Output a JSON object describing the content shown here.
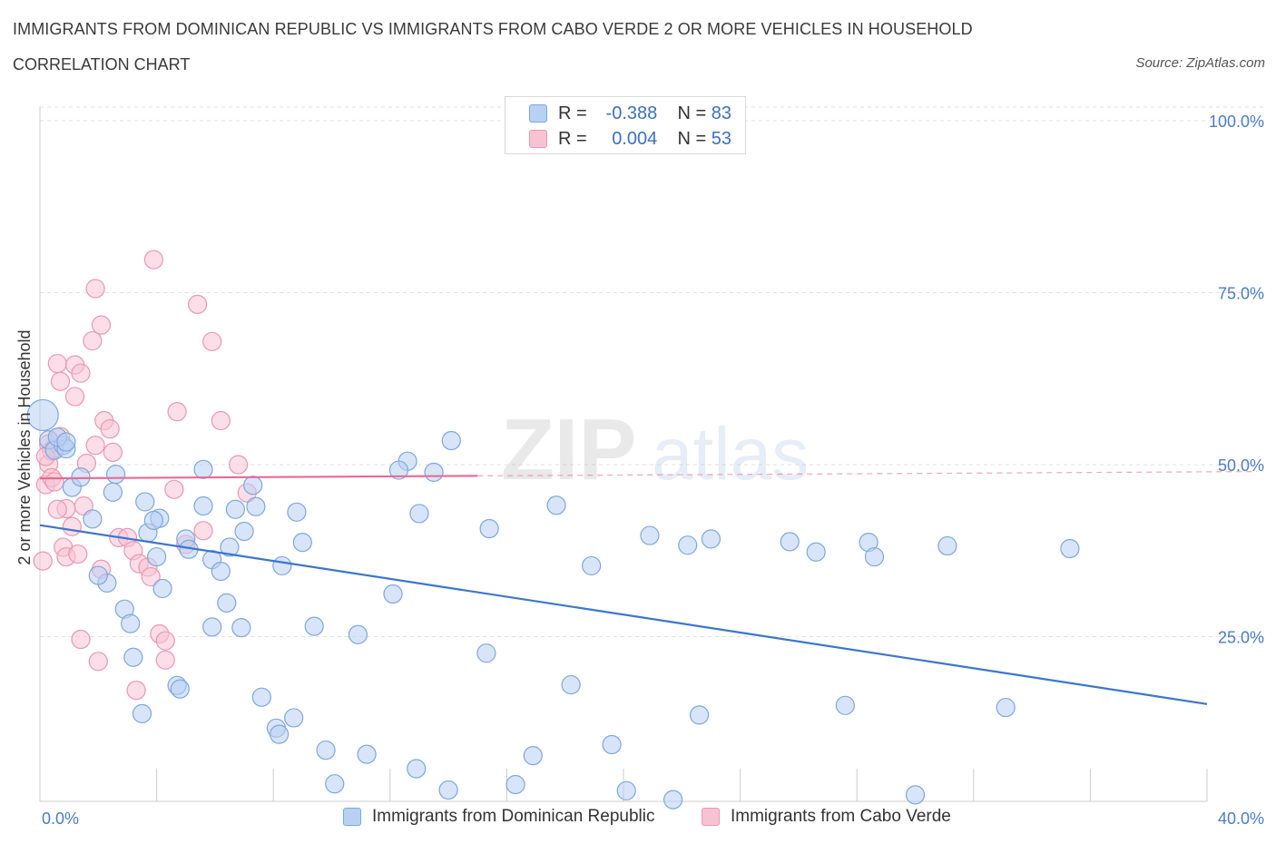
{
  "title": "IMMIGRANTS FROM DOMINICAN REPUBLIC VS IMMIGRANTS FROM CABO VERDE 2 OR MORE VEHICLES IN HOUSEHOLD",
  "subtitle": "CORRELATION CHART",
  "source": "Source: ZipAtlas.com",
  "watermark": {
    "zip": "ZIP",
    "atlas": "atlas"
  },
  "legend": {
    "rows": [
      {
        "r_label": "R =",
        "r_value": "-0.388",
        "n_label": "N =",
        "n_value": "83"
      },
      {
        "r_label": "R =",
        "r_value": "0.004",
        "n_label": "N =",
        "n_value": "53"
      }
    ]
  },
  "colors": {
    "blue_fill": "#b8d0f2",
    "blue_stroke": "#7ea6e0",
    "blue_line": "#3a75d1",
    "pink_fill": "#f7c3d3",
    "pink_stroke": "#eb97b2",
    "pink_line": "#e86a94",
    "grid": "#e2e2e2",
    "axis_text": "#4a7cc9"
  },
  "chart_data": {
    "type": "scatter",
    "title": "IMMIGRANTS FROM DOMINICAN REPUBLIC VS IMMIGRANTS FROM CABO VERDE 2 OR MORE VEHICLES IN HOUSEHOLD",
    "subtitle": "CORRELATION CHART",
    "xlabel": "",
    "ylabel": "2 or more Vehicles in Household",
    "xlim": [
      0,
      40
    ],
    "ylim": [
      0,
      100
    ],
    "x_tick_labels": [
      "0.0%",
      "40.0%"
    ],
    "y_ticks": [
      25,
      50,
      75,
      100
    ],
    "y_tick_labels": [
      "25.0%",
      "50.0%",
      "75.0%",
      "100.0%"
    ],
    "grid": true,
    "legend_position": "top-center",
    "series": [
      {
        "name": "Immigrants from Dominican Republic",
        "color": "#b8d0f2",
        "R": -0.388,
        "N": 83,
        "trend": {
          "x": [
            0,
            40
          ],
          "y": [
            41.2,
            15.2
          ]
        },
        "points": [
          [
            0.1,
            57.2
          ],
          [
            0.3,
            53.6
          ],
          [
            0.5,
            52.1
          ],
          [
            0.8,
            52.8
          ],
          [
            0.9,
            52.3
          ],
          [
            1.1,
            46.7
          ],
          [
            1.4,
            48.2
          ],
          [
            1.8,
            42.1
          ],
          [
            2.5,
            46.0
          ],
          [
            2.6,
            48.6
          ],
          [
            2.3,
            32.8
          ],
          [
            2.9,
            29.0
          ],
          [
            3.1,
            26.9
          ],
          [
            3.2,
            22.0
          ],
          [
            3.5,
            13.8
          ],
          [
            3.6,
            44.6
          ],
          [
            3.7,
            40.1
          ],
          [
            4.0,
            36.6
          ],
          [
            4.1,
            42.2
          ],
          [
            4.2,
            32.0
          ],
          [
            4.7,
            17.9
          ],
          [
            4.8,
            17.4
          ],
          [
            5.0,
            39.2
          ],
          [
            5.1,
            37.7
          ],
          [
            5.6,
            49.3
          ],
          [
            5.6,
            44.0
          ],
          [
            5.9,
            36.2
          ],
          [
            5.9,
            26.4
          ],
          [
            6.2,
            34.5
          ],
          [
            6.4,
            29.9
          ],
          [
            6.5,
            38.0
          ],
          [
            6.9,
            26.3
          ],
          [
            7.0,
            40.3
          ],
          [
            7.3,
            47.0
          ],
          [
            7.6,
            16.2
          ],
          [
            8.1,
            11.7
          ],
          [
            8.2,
            10.8
          ],
          [
            8.3,
            35.3
          ],
          [
            8.7,
            13.2
          ],
          [
            8.8,
            43.1
          ],
          [
            9.0,
            38.7
          ],
          [
            9.4,
            26.5
          ],
          [
            9.8,
            8.5
          ],
          [
            10.1,
            3.6
          ],
          [
            10.9,
            25.3
          ],
          [
            11.2,
            7.9
          ],
          [
            12.1,
            31.2
          ],
          [
            12.6,
            50.5
          ],
          [
            12.9,
            5.8
          ],
          [
            13.0,
            42.9
          ],
          [
            13.5,
            48.9
          ],
          [
            14.0,
            2.7
          ],
          [
            14.1,
            53.5
          ],
          [
            15.3,
            22.6
          ],
          [
            15.4,
            40.7
          ],
          [
            16.3,
            3.5
          ],
          [
            16.9,
            7.7
          ],
          [
            17.7,
            44.1
          ],
          [
            18.2,
            18.0
          ],
          [
            18.9,
            35.3
          ],
          [
            19.6,
            9.3
          ],
          [
            20.1,
            2.6
          ],
          [
            20.9,
            39.7
          ],
          [
            21.7,
            1.3
          ],
          [
            22.2,
            38.3
          ],
          [
            22.6,
            13.6
          ],
          [
            23.0,
            39.2
          ],
          [
            25.7,
            38.8
          ],
          [
            26.6,
            37.3
          ],
          [
            27.6,
            15.0
          ],
          [
            28.4,
            38.7
          ],
          [
            28.6,
            36.6
          ],
          [
            30.0,
            2.0
          ],
          [
            31.1,
            38.2
          ],
          [
            33.1,
            14.7
          ],
          [
            35.3,
            37.8
          ],
          [
            0.6,
            54.0
          ],
          [
            2.0,
            33.9
          ],
          [
            3.9,
            41.9
          ],
          [
            6.7,
            43.5
          ],
          [
            12.3,
            49.2
          ],
          [
            7.4,
            43.9
          ],
          [
            0.9,
            53.3
          ]
        ]
      },
      {
        "name": "Immigrants from Cabo Verde",
        "color": "#f7c3d3",
        "R": 0.004,
        "N": 53,
        "trend": {
          "x": [
            0,
            40
          ],
          "y": [
            48.0,
            49.0
          ]
        },
        "points": [
          [
            0.1,
            36.0
          ],
          [
            0.2,
            47.1
          ],
          [
            0.3,
            50.1
          ],
          [
            0.3,
            53.0
          ],
          [
            0.4,
            48.1
          ],
          [
            0.4,
            52.0
          ],
          [
            0.5,
            47.5
          ],
          [
            0.5,
            52.4
          ],
          [
            0.6,
            64.7
          ],
          [
            0.7,
            62.1
          ],
          [
            0.7,
            54.1
          ],
          [
            0.8,
            38.0
          ],
          [
            0.9,
            43.6
          ],
          [
            0.9,
            36.6
          ],
          [
            1.1,
            41.0
          ],
          [
            1.2,
            59.9
          ],
          [
            1.2,
            64.5
          ],
          [
            1.3,
            37.0
          ],
          [
            1.4,
            63.3
          ],
          [
            1.4,
            24.6
          ],
          [
            1.5,
            44.0
          ],
          [
            1.6,
            50.2
          ],
          [
            1.8,
            68.0
          ],
          [
            1.9,
            75.6
          ],
          [
            1.9,
            52.8
          ],
          [
            2.0,
            21.4
          ],
          [
            2.1,
            34.8
          ],
          [
            2.1,
            70.3
          ],
          [
            2.2,
            56.4
          ],
          [
            2.4,
            55.2
          ],
          [
            2.5,
            51.8
          ],
          [
            2.7,
            39.4
          ],
          [
            3.0,
            39.4
          ],
          [
            3.2,
            37.5
          ],
          [
            3.3,
            17.2
          ],
          [
            3.4,
            35.6
          ],
          [
            3.7,
            35.1
          ],
          [
            3.8,
            33.7
          ],
          [
            3.9,
            79.8
          ],
          [
            4.1,
            25.4
          ],
          [
            4.3,
            21.6
          ],
          [
            4.3,
            24.4
          ],
          [
            4.6,
            46.4
          ],
          [
            4.7,
            57.7
          ],
          [
            5.0,
            38.4
          ],
          [
            5.4,
            73.3
          ],
          [
            5.6,
            40.4
          ],
          [
            5.9,
            67.9
          ],
          [
            6.2,
            56.4
          ],
          [
            6.8,
            50.0
          ],
          [
            7.1,
            45.9
          ],
          [
            0.2,
            51.2
          ],
          [
            0.6,
            43.5
          ]
        ]
      }
    ]
  },
  "bottom_legend": {
    "series_a": "Immigrants from Dominican Republic",
    "series_b": "Immigrants from Cabo Verde"
  }
}
